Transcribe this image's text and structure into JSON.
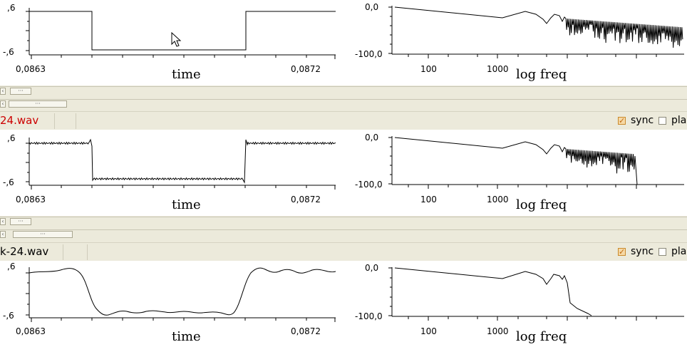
{
  "colors": {
    "panel_bg": "#eceadb",
    "filename_color": "#cc0000",
    "checkbox_checked": "#f6d9a6"
  },
  "panels": [
    {
      "wave": {
        "ymax_label": ",6",
        "ymin_label": "-,6",
        "xmin_label": "0,0863",
        "xmax_label": "0,0872",
        "xlabel": "time"
      },
      "spec": {
        "ymax_label": "0,0",
        "ymin_label": "-100,0",
        "x_ticks": [
          "100",
          "1000"
        ],
        "xlabel": "log freq"
      }
    },
    {
      "filename": "24.wav",
      "filename_red": true,
      "sync_label": "sync",
      "sync_checked": true,
      "play_label": "pla",
      "play_checked": false,
      "wave": {
        "ymax_label": ",6",
        "ymin_label": "-,6",
        "xmin_label": "0,0863",
        "xmax_label": "0,0872",
        "xlabel": "time"
      },
      "spec": {
        "ymax_label": "0,0",
        "ymin_label": "-100,0",
        "x_ticks": [
          "100",
          "1000"
        ],
        "xlabel": "log freq"
      }
    },
    {
      "filename": "k-24.wav",
      "filename_red": false,
      "sync_label": "sync",
      "sync_checked": true,
      "play_label": "pla",
      "play_checked": false,
      "wave": {
        "ymax_label": ",6",
        "ymin_label": "-,6",
        "xmin_label": "0,0863",
        "xmax_label": "0,0872",
        "xlabel": "time"
      },
      "spec": {
        "ymax_label": "0,0",
        "ymin_label": "-100,0",
        "x_ticks": [
          "100",
          "1000"
        ],
        "xlabel": "log freq"
      }
    }
  ],
  "scrollbars": {
    "thumb_label": "···",
    "left_arrow": "‹"
  },
  "icons": {
    "cursor": "arrow-cursor-icon",
    "check": "checkmark-icon"
  }
}
